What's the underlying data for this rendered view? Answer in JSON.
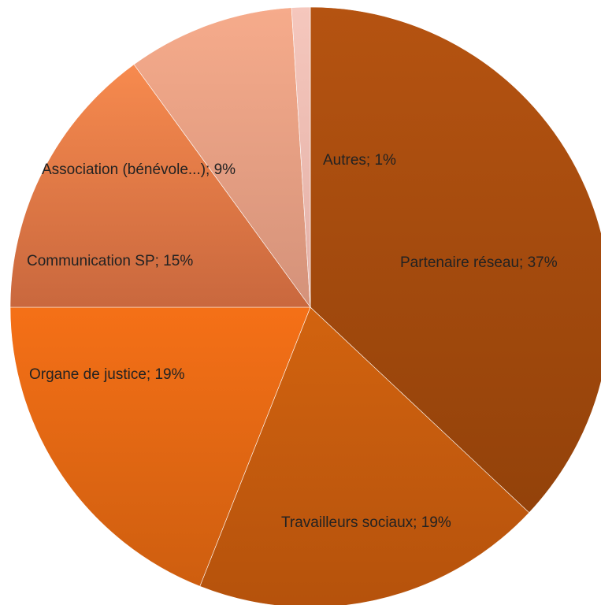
{
  "chart_data": {
    "type": "pie",
    "title": "",
    "start": "12 o'clock",
    "direction": "clockwise",
    "legend": "none",
    "slices": [
      {
        "label": "Partenaire réseau; 37%",
        "category": "Partenaire réseau",
        "value": 37,
        "color_light": "#b55311",
        "color_dark": "#93420a"
      },
      {
        "label": "Travailleurs sociaux; 19%",
        "category": "Travailleurs sociaux",
        "value": 19,
        "color_light": "#d2630f",
        "color_dark": "#b5520c"
      },
      {
        "label": "Organe de justice; 19%",
        "category": "Organe de justice",
        "value": 19,
        "color_light": "#f57017",
        "color_dark": "#ce5e0f"
      },
      {
        "label": "Communication SP; 15%",
        "category": "Communication SP",
        "value": 15,
        "color_light": "#f78a4e",
        "color_dark": "#c9683e"
      },
      {
        "label": "Association (bénévole...); 9%",
        "category": "Association (bénévole...)",
        "value": 9,
        "color_light": "#f6ab8b",
        "color_dark": "#d4927a"
      },
      {
        "label": "Autres; 1%",
        "category": "Autres",
        "value": 1,
        "color_light": "#f5c7bd",
        "color_dark": "#e3b0a6"
      }
    ]
  }
}
